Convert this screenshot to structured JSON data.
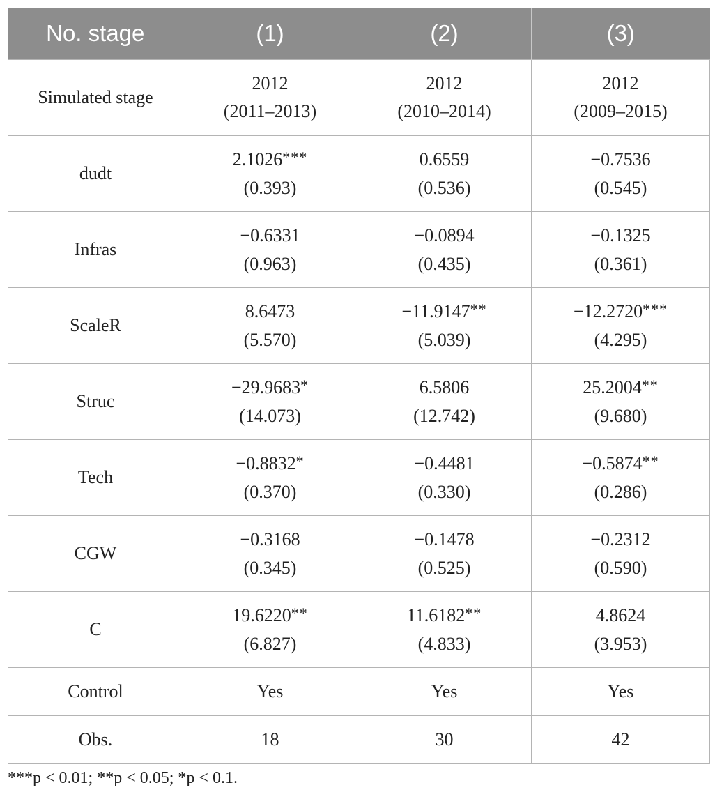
{
  "table": {
    "headers": [
      "No. stage",
      "(1)",
      "(2)",
      "(3)"
    ],
    "simulated_stage": {
      "label": "Simulated stage",
      "cells": [
        {
          "line1": "2012",
          "line2": "(2011–2013)"
        },
        {
          "line1": "2012",
          "line2": "(2010–2014)"
        },
        {
          "line1": "2012",
          "line2": "(2009–2015)"
        }
      ]
    },
    "variables": [
      {
        "label": "dudt",
        "cells": [
          {
            "coef": "2.1026",
            "stars": "***",
            "se": "(0.393)"
          },
          {
            "coef": "0.6559",
            "stars": "",
            "se": "(0.536)"
          },
          {
            "coef": "−0.7536",
            "stars": "",
            "se": "(0.545)"
          }
        ]
      },
      {
        "label": "Infras",
        "cells": [
          {
            "coef": "−0.6331",
            "stars": "",
            "se": "(0.963)"
          },
          {
            "coef": "−0.0894",
            "stars": "",
            "se": "(0.435)"
          },
          {
            "coef": "−0.1325",
            "stars": "",
            "se": "(0.361)"
          }
        ]
      },
      {
        "label": "ScaleR",
        "cells": [
          {
            "coef": "8.6473",
            "stars": "",
            "se": "(5.570)"
          },
          {
            "coef": "−11.9147",
            "stars": "**",
            "se": "(5.039)"
          },
          {
            "coef": "−12.2720",
            "stars": "***",
            "se": "(4.295)"
          }
        ]
      },
      {
        "label": "Struc",
        "cells": [
          {
            "coef": "−29.9683",
            "stars": "*",
            "se": "(14.073)"
          },
          {
            "coef": "6.5806",
            "stars": "",
            "se": "(12.742)"
          },
          {
            "coef": "25.2004",
            "stars": "**",
            "se": "(9.680)"
          }
        ]
      },
      {
        "label": "Tech",
        "cells": [
          {
            "coef": "−0.8832",
            "stars": "*",
            "se": "(0.370)"
          },
          {
            "coef": "−0.4481",
            "stars": "",
            "se": "(0.330)"
          },
          {
            "coef": "−0.5874",
            "stars": "**",
            "se": "(0.286)"
          }
        ]
      },
      {
        "label": "CGW",
        "cells": [
          {
            "coef": "−0.3168",
            "stars": "",
            "se": "(0.345)"
          },
          {
            "coef": "−0.1478",
            "stars": "",
            "se": "(0.525)"
          },
          {
            "coef": "−0.2312",
            "stars": "",
            "se": "(0.590)"
          }
        ]
      },
      {
        "label": "C",
        "cells": [
          {
            "coef": "19.6220",
            "stars": "**",
            "se": "(6.827)"
          },
          {
            "coef": "11.6182",
            "stars": "**",
            "se": "(4.833)"
          },
          {
            "coef": "4.8624",
            "stars": "",
            "se": "(3.953)"
          }
        ]
      }
    ],
    "control": {
      "label": "Control",
      "values": [
        "Yes",
        "Yes",
        "Yes"
      ]
    },
    "obs": {
      "label": "Obs.",
      "values": [
        "18",
        "30",
        "42"
      ]
    }
  },
  "footnote": "***p < 0.01; **p < 0.05; *p < 0.1.",
  "colors": {
    "header_bg": "#8d8d8d",
    "header_text": "#ffffff",
    "border": "#b4b4b4",
    "body_text": "#222222"
  }
}
